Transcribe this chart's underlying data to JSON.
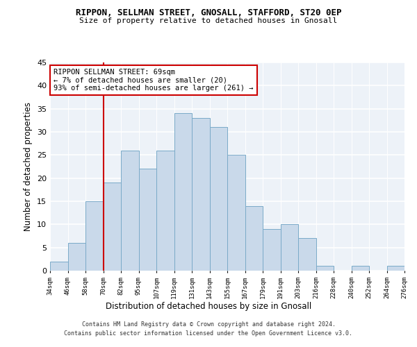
{
  "title1": "RIPPON, SELLMAN STREET, GNOSALL, STAFFORD, ST20 0EP",
  "title2": "Size of property relative to detached houses in Gnosall",
  "xlabel": "Distribution of detached houses by size in Gnosall",
  "ylabel": "Number of detached properties",
  "footer1": "Contains HM Land Registry data © Crown copyright and database right 2024.",
  "footer2": "Contains public sector information licensed under the Open Government Licence v3.0.",
  "annotation_line1": "RIPPON SELLMAN STREET: 69sqm",
  "annotation_line2": "← 7% of detached houses are smaller (20)",
  "annotation_line3": "93% of semi-detached houses are larger (261) →",
  "bar_labels": [
    "34sqm",
    "46sqm",
    "58sqm",
    "70sqm",
    "82sqm",
    "95sqm",
    "107sqm",
    "119sqm",
    "131sqm",
    "143sqm",
    "155sqm",
    "167sqm",
    "179sqm",
    "191sqm",
    "203sqm",
    "216sqm",
    "228sqm",
    "240sqm",
    "252sqm",
    "264sqm",
    "276sqm"
  ],
  "bar_values": [
    2,
    6,
    15,
    19,
    26,
    22,
    26,
    34,
    33,
    31,
    25,
    14,
    9,
    10,
    7,
    1,
    0,
    1,
    0,
    1
  ],
  "bar_color": "#c9d9ea",
  "bar_edge_color": "#7aaac8",
  "marker_color": "#cc0000",
  "ylim": [
    0,
    45
  ],
  "yticks": [
    0,
    5,
    10,
    15,
    20,
    25,
    30,
    35,
    40,
    45
  ],
  "bg_color": "#edf2f8",
  "grid_color": "#ffffff"
}
